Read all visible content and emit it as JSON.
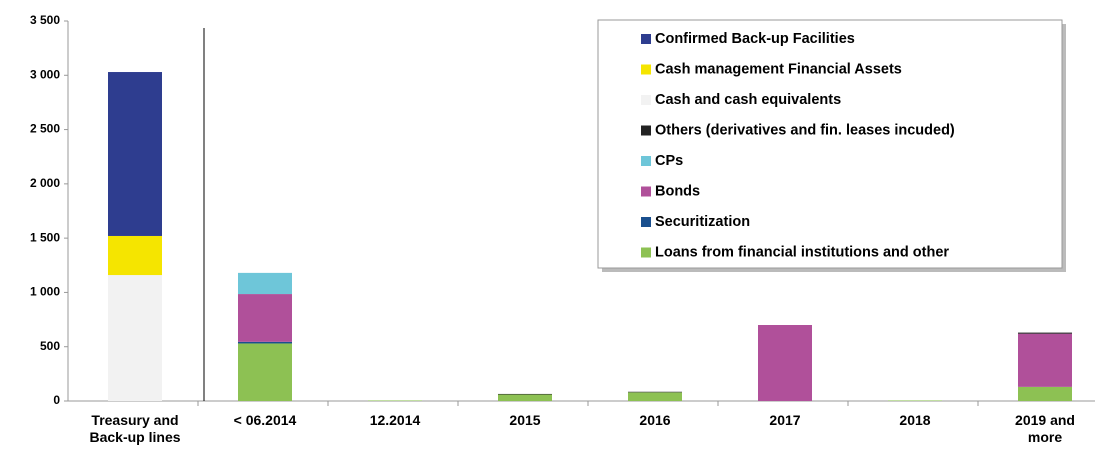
{
  "chart_data": {
    "type": "bar",
    "stacked": true,
    "categories": [
      "Treasury and Back-up lines",
      "< 06.2014",
      "12.2014",
      "2015",
      "2016",
      "2017",
      "2018",
      "2019 and more"
    ],
    "series": [
      {
        "name": "Confirmed Back-up Facilities",
        "color": "#2e3d8f",
        "values": [
          1510,
          0,
          0,
          0,
          0,
          0,
          0,
          0
        ]
      },
      {
        "name": "Cash management Financial Assets",
        "color": "#f5e500",
        "values": [
          360,
          0,
          0,
          0,
          0,
          0,
          0,
          0
        ]
      },
      {
        "name": "Cash and cash equivalents",
        "color": "#f2f2f2",
        "values": [
          1160,
          0,
          0,
          0,
          0,
          0,
          0,
          0
        ]
      },
      {
        "name": "Others (derivatives and fin. leases incuded)",
        "color": "#222222",
        "values": [
          0,
          0,
          0,
          5,
          5,
          0,
          0,
          10
        ]
      },
      {
        "name": "CPs",
        "color": "#6ec6d9",
        "values": [
          0,
          195,
          0,
          0,
          0,
          0,
          0,
          0
        ]
      },
      {
        "name": "Bonds",
        "color": "#b0509a",
        "values": [
          0,
          440,
          0,
          0,
          0,
          700,
          0,
          490
        ]
      },
      {
        "name": "Securitization",
        "color": "#1a4f8e",
        "values": [
          0,
          15,
          0,
          0,
          0,
          0,
          0,
          0
        ]
      },
      {
        "name": "Loans from financial institutions and other",
        "color": "#8dc153",
        "values": [
          0,
          530,
          5,
          60,
          80,
          0,
          5,
          130
        ]
      }
    ],
    "ylim": [
      0,
      3500
    ],
    "yticks": [
      0,
      500,
      {
        "value": 1000,
        "label": "1 000"
      },
      {
        "value": 1500,
        "label": "1 500"
      },
      {
        "value": 2000,
        "label": "2 000"
      },
      {
        "value": 2500,
        "label": "2 500"
      },
      {
        "value": 3000,
        "label": "3 000"
      },
      {
        "value": 3500,
        "label": "3 500"
      }
    ],
    "legend": "upper right"
  }
}
